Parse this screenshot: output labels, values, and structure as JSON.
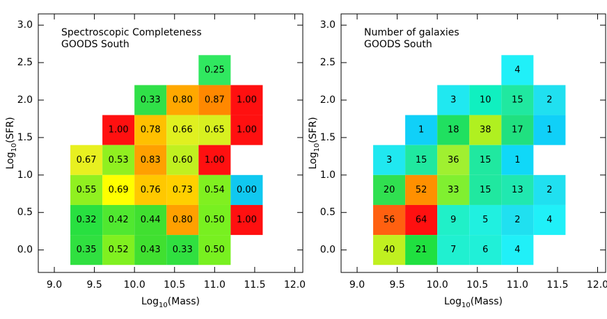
{
  "chart_data": [
    {
      "type": "heatmap",
      "title": "Spectroscopic Completeness",
      "subtitle": "GOODS South",
      "xlabel": {
        "base": "Log",
        "sub": "10",
        "rest": "(Mass)"
      },
      "ylabel": {
        "base": "Log",
        "sub": "10",
        "rest": "(SFR)"
      },
      "xlim": [
        8.8,
        12.1
      ],
      "ylim": [
        -0.3,
        3.15
      ],
      "cell_size": 0.4,
      "xticks": [
        {
          "value": 9,
          "label": "9.0"
        },
        {
          "value": 9.5,
          "label": "9.5"
        },
        {
          "value": 10,
          "label": "10.0"
        },
        {
          "value": 10.5,
          "label": "10.5"
        },
        {
          "value": 11,
          "label": "11.0"
        },
        {
          "value": 11.5,
          "label": "11.5"
        },
        {
          "value": 12,
          "label": "12.0"
        }
      ],
      "yticks": [
        {
          "value": 0,
          "label": "0.0"
        },
        {
          "value": 0.5,
          "label": "0.5"
        },
        {
          "value": 1,
          "label": "1.0"
        },
        {
          "value": 1.5,
          "label": "1.5"
        },
        {
          "value": 2,
          "label": "2.0"
        },
        {
          "value": 2.5,
          "label": "2.5"
        },
        {
          "value": 3,
          "label": "3.0"
        }
      ],
      "cells": [
        {
          "x": 11.0,
          "y": 2.4,
          "value": 0.25,
          "label": "0.25",
          "color": "#30e860"
        },
        {
          "x": 10.2,
          "y": 2.0,
          "value": 0.33,
          "label": "0.33",
          "color": "#30e048"
        },
        {
          "x": 10.6,
          "y": 2.0,
          "value": 0.8,
          "label": "0.80",
          "color": "#ffa800"
        },
        {
          "x": 11.0,
          "y": 2.0,
          "value": 0.87,
          "label": "0.87",
          "color": "#ff8800"
        },
        {
          "x": 11.4,
          "y": 2.0,
          "value": 1,
          "label": "1.00",
          "color": "#ff1010"
        },
        {
          "x": 9.8,
          "y": 1.6,
          "value": 1,
          "label": "1.00",
          "color": "#ff1010"
        },
        {
          "x": 10.2,
          "y": 1.6,
          "value": 0.78,
          "label": "0.78",
          "color": "#ffc000"
        },
        {
          "x": 10.6,
          "y": 1.6,
          "value": 0.66,
          "label": "0.66",
          "color": "#e0f020"
        },
        {
          "x": 11.0,
          "y": 1.6,
          "value": 0.65,
          "label": "0.65",
          "color": "#d8f020"
        },
        {
          "x": 11.4,
          "y": 1.6,
          "value": 1,
          "label": "1.00",
          "color": "#ff1010"
        },
        {
          "x": 9.4,
          "y": 1.2,
          "value": 0.67,
          "label": "0.67",
          "color": "#e8f020"
        },
        {
          "x": 9.8,
          "y": 1.2,
          "value": 0.53,
          "label": "0.53",
          "color": "#90f020"
        },
        {
          "x": 10.2,
          "y": 1.2,
          "value": 0.83,
          "label": "0.83",
          "color": "#ffa000"
        },
        {
          "x": 10.6,
          "y": 1.2,
          "value": 0.6,
          "label": "0.60",
          "color": "#c0f020"
        },
        {
          "x": 11.0,
          "y": 1.2,
          "value": 1,
          "label": "1.00",
          "color": "#ff1010"
        },
        {
          "x": 9.4,
          "y": 0.8,
          "value": 0.55,
          "label": "0.55",
          "color": "#90f020"
        },
        {
          "x": 9.8,
          "y": 0.8,
          "value": 0.69,
          "label": "0.69",
          "color": "#ffff00"
        },
        {
          "x": 10.2,
          "y": 0.8,
          "value": 0.76,
          "label": "0.76",
          "color": "#ffc800"
        },
        {
          "x": 10.6,
          "y": 0.8,
          "value": 0.73,
          "label": "0.73",
          "color": "#ffd000"
        },
        {
          "x": 11.0,
          "y": 0.8,
          "value": 0.54,
          "label": "0.54",
          "color": "#80f020"
        },
        {
          "x": 11.4,
          "y": 0.8,
          "value": 0,
          "label": "0.00",
          "color": "#10c8f0"
        },
        {
          "x": 9.4,
          "y": 0.4,
          "value": 0.32,
          "label": "0.32",
          "color": "#28e040"
        },
        {
          "x": 9.8,
          "y": 0.4,
          "value": 0.42,
          "label": "0.42",
          "color": "#50e830"
        },
        {
          "x": 10.2,
          "y": 0.4,
          "value": 0.44,
          "label": "0.44",
          "color": "#40e030"
        },
        {
          "x": 10.6,
          "y": 0.4,
          "value": 0.8,
          "label": "0.80",
          "color": "#ffa000"
        },
        {
          "x": 11.0,
          "y": 0.4,
          "value": 0.5,
          "label": "0.50",
          "color": "#78f020"
        },
        {
          "x": 11.4,
          "y": 0.4,
          "value": 1,
          "label": "1.00",
          "color": "#ff1010"
        },
        {
          "x": 9.4,
          "y": 0.0,
          "value": 0.35,
          "label": "0.35",
          "color": "#30e040"
        },
        {
          "x": 9.8,
          "y": 0.0,
          "value": 0.52,
          "label": "0.52",
          "color": "#80f020"
        },
        {
          "x": 10.2,
          "y": 0.0,
          "value": 0.43,
          "label": "0.43",
          "color": "#40e030"
        },
        {
          "x": 10.6,
          "y": 0.0,
          "value": 0.33,
          "label": "0.33",
          "color": "#30e040"
        },
        {
          "x": 11.0,
          "y": 0.0,
          "value": 0.5,
          "label": "0.50",
          "color": "#78f020"
        }
      ]
    },
    {
      "type": "heatmap",
      "title": "Number of galaxies",
      "subtitle": "GOODS South",
      "xlabel": {
        "base": "Log",
        "sub": "10",
        "rest": "(Mass)"
      },
      "ylabel": {
        "base": "Log",
        "sub": "10",
        "rest": "(SFR)"
      },
      "xlim": [
        8.8,
        12.1
      ],
      "ylim": [
        -0.3,
        3.15
      ],
      "cell_size": 0.4,
      "xticks": [
        {
          "value": 9,
          "label": "9.0"
        },
        {
          "value": 9.5,
          "label": "9.5"
        },
        {
          "value": 10,
          "label": "10.0"
        },
        {
          "value": 10.5,
          "label": "10.5"
        },
        {
          "value": 11,
          "label": "11.0"
        },
        {
          "value": 11.5,
          "label": "11.5"
        },
        {
          "value": 12,
          "label": "12.0"
        }
      ],
      "yticks": [
        {
          "value": 0,
          "label": "0.0"
        },
        {
          "value": 0.5,
          "label": "0.5"
        },
        {
          "value": 1,
          "label": "1.0"
        },
        {
          "value": 1.5,
          "label": "1.5"
        },
        {
          "value": 2,
          "label": "2.0"
        },
        {
          "value": 2.5,
          "label": "2.5"
        },
        {
          "value": 3,
          "label": "3.0"
        }
      ],
      "cells": [
        {
          "x": 11.0,
          "y": 2.4,
          "value": 4,
          "color": "#20f0f8"
        },
        {
          "x": 10.2,
          "y": 2.0,
          "value": 3,
          "color": "#20e8f0"
        },
        {
          "x": 10.6,
          "y": 2.0,
          "value": 10,
          "color": "#10f0c0"
        },
        {
          "x": 11.0,
          "y": 2.0,
          "value": 15,
          "color": "#20e8a0"
        },
        {
          "x": 11.4,
          "y": 2.0,
          "value": 2,
          "color": "#20e0f0"
        },
        {
          "x": 9.8,
          "y": 1.6,
          "value": 1,
          "color": "#10d0f8"
        },
        {
          "x": 10.2,
          "y": 1.6,
          "value": 18,
          "color": "#20e060"
        },
        {
          "x": 10.6,
          "y": 1.6,
          "value": 38,
          "color": "#b0f020"
        },
        {
          "x": 11.0,
          "y": 1.6,
          "value": 17,
          "color": "#20e080"
        },
        {
          "x": 11.4,
          "y": 1.6,
          "value": 1,
          "color": "#10d0f8"
        },
        {
          "x": 9.4,
          "y": 1.2,
          "value": 3,
          "color": "#20e8f0"
        },
        {
          "x": 9.8,
          "y": 1.2,
          "value": 15,
          "color": "#20e8a0"
        },
        {
          "x": 10.2,
          "y": 1.2,
          "value": 36,
          "color": "#a0f030"
        },
        {
          "x": 10.6,
          "y": 1.2,
          "value": 15,
          "color": "#20e8a0"
        },
        {
          "x": 11.0,
          "y": 1.2,
          "value": 1,
          "color": "#10d8f8"
        },
        {
          "x": 9.4,
          "y": 0.8,
          "value": 20,
          "color": "#30e050"
        },
        {
          "x": 9.8,
          "y": 0.8,
          "value": 52,
          "color": "#ff9000"
        },
        {
          "x": 10.2,
          "y": 0.8,
          "value": 33,
          "color": "#80f030"
        },
        {
          "x": 10.6,
          "y": 0.8,
          "value": 15,
          "color": "#20e8a0"
        },
        {
          "x": 11.0,
          "y": 0.8,
          "value": 13,
          "color": "#20e8b0"
        },
        {
          "x": 11.4,
          "y": 0.8,
          "value": 2,
          "color": "#20e0f0"
        },
        {
          "x": 9.4,
          "y": 0.4,
          "value": 56,
          "color": "#ff6010"
        },
        {
          "x": 9.8,
          "y": 0.4,
          "value": 64,
          "color": "#ff1010"
        },
        {
          "x": 10.2,
          "y": 0.4,
          "value": 9,
          "color": "#20f0c8"
        },
        {
          "x": 10.6,
          "y": 0.4,
          "value": 5,
          "color": "#20f0e0"
        },
        {
          "x": 11.0,
          "y": 0.4,
          "value": 2,
          "color": "#20e0f0"
        },
        {
          "x": 11.4,
          "y": 0.4,
          "value": 4,
          "color": "#20f0f8"
        },
        {
          "x": 9.4,
          "y": 0.0,
          "value": 40,
          "color": "#c0f020"
        },
        {
          "x": 9.8,
          "y": 0.0,
          "value": 21,
          "color": "#20e040"
        },
        {
          "x": 10.2,
          "y": 0.0,
          "value": 7,
          "color": "#20f0d0"
        },
        {
          "x": 10.6,
          "y": 0.0,
          "value": 6,
          "color": "#20f0d8"
        },
        {
          "x": 11.0,
          "y": 0.0,
          "value": 4,
          "color": "#20f0f8"
        }
      ]
    }
  ]
}
